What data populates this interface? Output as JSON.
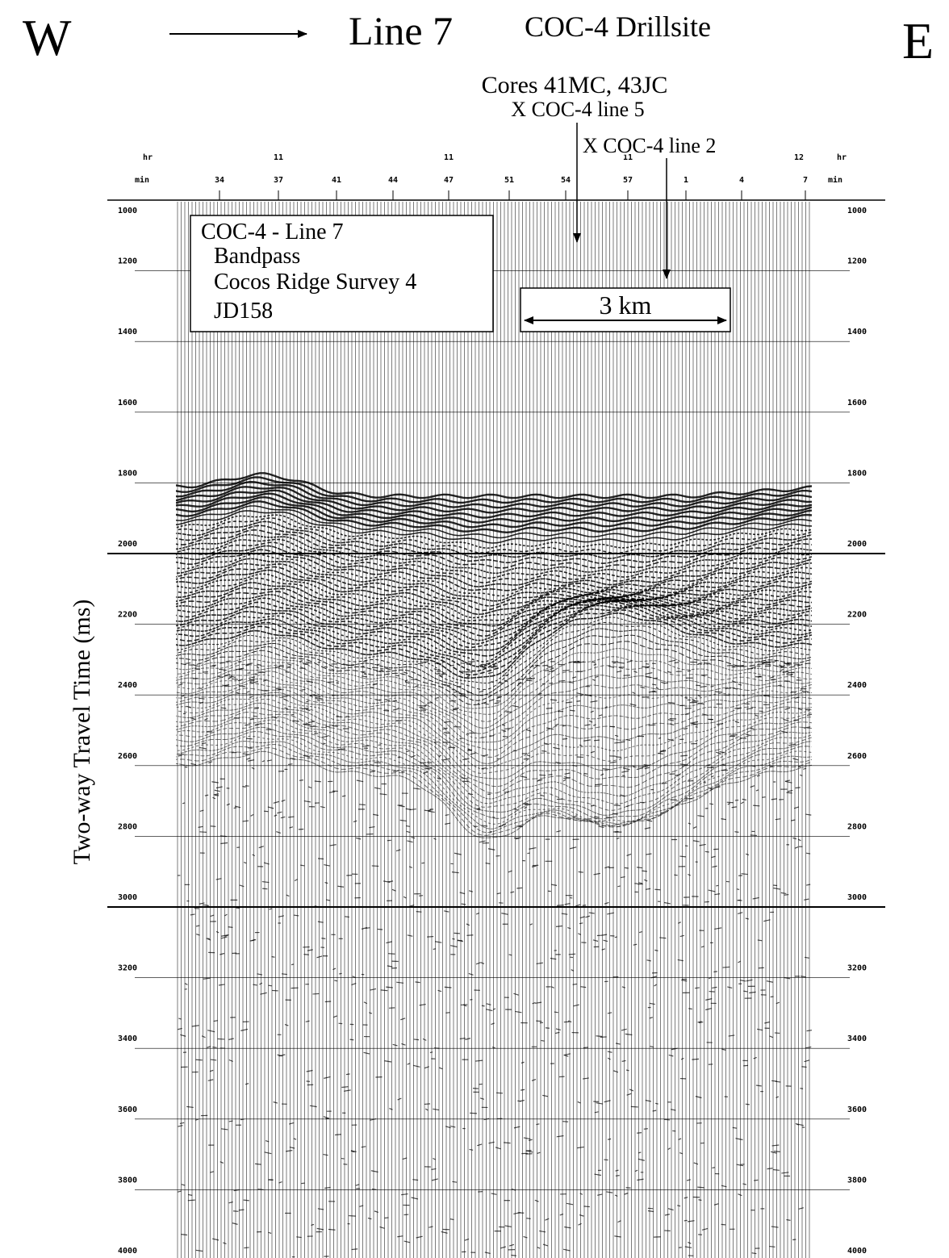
{
  "header": {
    "west": "W",
    "line": "Line 7",
    "site": "COC-4 Drillsite",
    "east": "E"
  },
  "annotations": {
    "cores": "Cores 41MC, 43JC",
    "crossing_line5": "X COC-4 line 5",
    "crossing_line2": "X COC-4 line 2",
    "scale": "3 km"
  },
  "info_box": [
    "COC-4 - Line 7",
    "Bandpass",
    "Cocos Ridge Survey 4",
    "JD158"
  ],
  "time_axis": {
    "hours": [
      "hr",
      "11",
      "11",
      "11",
      "12",
      "hr"
    ],
    "minutes": [
      "min",
      "34",
      "37",
      "41",
      "44",
      "47",
      "51",
      "54",
      "57",
      "1",
      "4",
      "7",
      "min"
    ]
  },
  "depth_axis": {
    "label": "Two-way Travel Time (ms)",
    "ylim": [
      4000,
      1000
    ],
    "yticks": [
      1000,
      1200,
      1400,
      1600,
      1800,
      2000,
      2200,
      2400,
      2600,
      2800,
      3000,
      3200,
      3400,
      3600,
      3800,
      4000
    ]
  }
}
